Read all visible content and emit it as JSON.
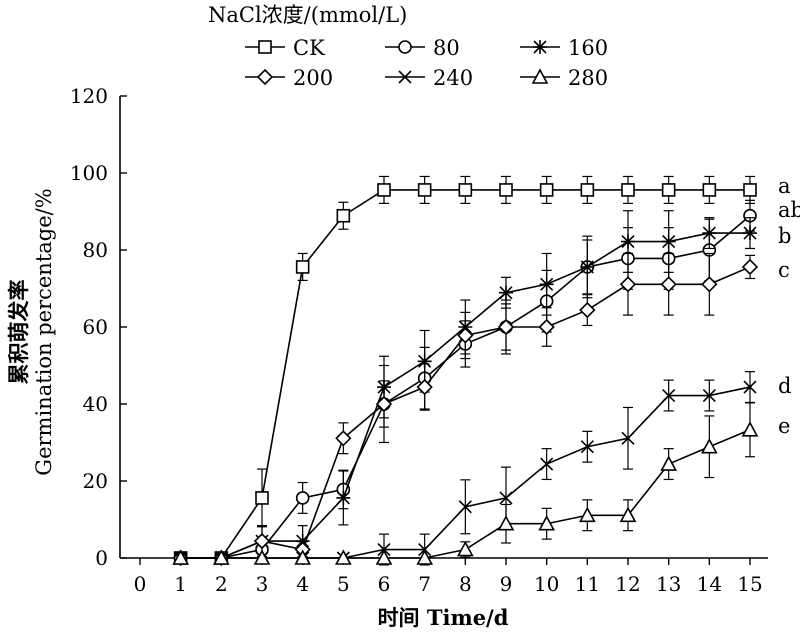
{
  "chart_data": {
    "type": "line",
    "xlabel": "时间 Time/d",
    "ylabel_cn": "累积萌发率",
    "ylabel_en": "Germination percentage/%",
    "legend_title": "NaCl浓度/(mmol/L)",
    "legend_position": "top",
    "x_ticks": [
      0,
      1,
      2,
      3,
      4,
      5,
      6,
      7,
      8,
      9,
      10,
      11,
      12,
      13,
      14,
      15
    ],
    "y_ticks": [
      0,
      20,
      40,
      60,
      80,
      100,
      120
    ],
    "xlim": [
      -0.4,
      15.4
    ],
    "ylim": [
      0,
      120
    ],
    "grid": false,
    "x": [
      1,
      2,
      3,
      4,
      5,
      6,
      7,
      8,
      9,
      10,
      11,
      12,
      13,
      14,
      15
    ],
    "series": [
      {
        "name": "CK",
        "marker": "square",
        "values": [
          0,
          0,
          15.6,
          75.6,
          88.9,
          95.6,
          95.6,
          95.6,
          95.6,
          95.6,
          95.6,
          95.6,
          95.6,
          95.6,
          95.6
        ],
        "errors": [
          0,
          0,
          7.5,
          3.5,
          3.5,
          3.5,
          3.5,
          3.5,
          3.5,
          3.5,
          3.5,
          3.5,
          3.5,
          3.5,
          3.5
        ],
        "significance": "a"
      },
      {
        "name": "80",
        "marker": "circle",
        "values": [
          0,
          0,
          2.2,
          15.6,
          17.8,
          40,
          46.7,
          55.6,
          60,
          66.7,
          75.6,
          77.8,
          77.8,
          80,
          88.9
        ],
        "errors": [
          0,
          0,
          2,
          4,
          5,
          10,
          8,
          6,
          6,
          8,
          7,
          8,
          8,
          8,
          4
        ],
        "significance": "ab"
      },
      {
        "name": "160",
        "marker": "star",
        "values": [
          0,
          0,
          4.4,
          4.4,
          15.6,
          44.4,
          51.1,
          60,
          68.9,
          71.1,
          75.6,
          82.2,
          82.2,
          84.4,
          84.4
        ],
        "errors": [
          0,
          0,
          4,
          4,
          7,
          8,
          8,
          7,
          4,
          8,
          8,
          8,
          8,
          4,
          4
        ],
        "significance": "b"
      },
      {
        "name": "200",
        "marker": "diamond",
        "values": [
          0,
          0,
          4.4,
          2.2,
          31.1,
          40,
          44.4,
          57.8,
          60,
          60,
          64.4,
          71.1,
          71.1,
          71.1,
          75.6
        ],
        "errors": [
          0,
          0,
          4,
          2,
          4,
          6,
          6,
          6,
          7,
          5,
          4,
          8,
          8,
          8,
          3
        ],
        "significance": "c"
      },
      {
        "name": "240",
        "marker": "cross",
        "values": [
          0,
          0,
          0,
          0,
          0,
          2.2,
          2.2,
          13.3,
          15.6,
          24.4,
          28.9,
          31.1,
          42.2,
          42.2,
          44.4
        ],
        "errors": [
          0,
          0,
          0,
          0,
          0,
          4,
          4,
          7,
          8,
          4,
          4,
          8,
          4,
          4,
          4
        ],
        "significance": "d"
      },
      {
        "name": "280",
        "marker": "triangle",
        "values": [
          0,
          0,
          0,
          0,
          0,
          0,
          0,
          2.2,
          8.9,
          8.9,
          11.1,
          11.1,
          24.4,
          28.9,
          33.3
        ],
        "errors": [
          0,
          0,
          0,
          0,
          0,
          0,
          0,
          2,
          5,
          4,
          4,
          4,
          4,
          8,
          7
        ],
        "significance": "e"
      }
    ]
  }
}
